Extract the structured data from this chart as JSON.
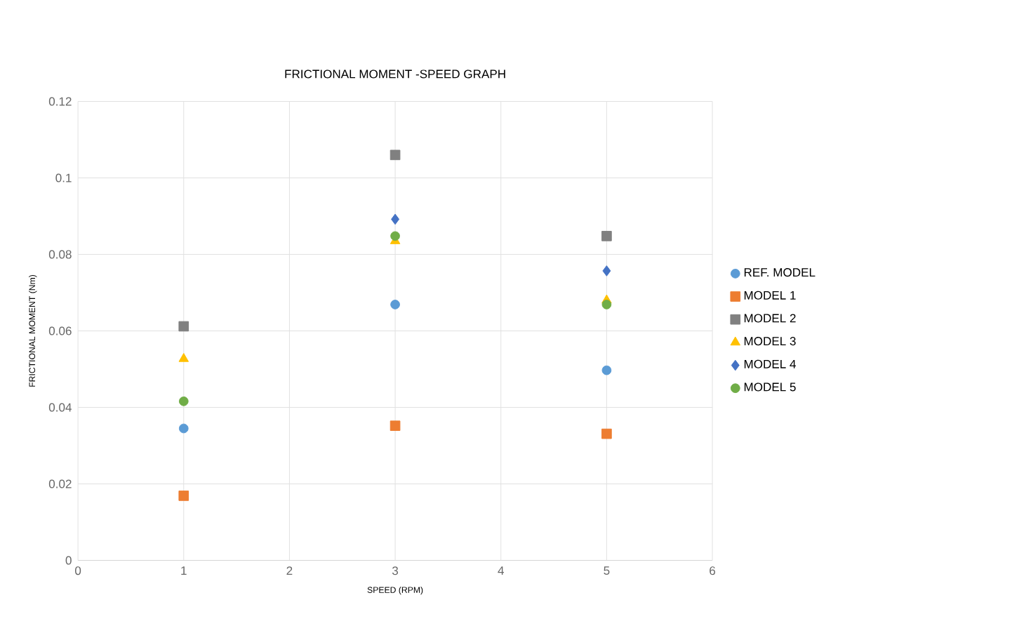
{
  "chart_data": {
    "type": "scatter",
    "title": "FRICTIONAL MOMENT -SPEED GRAPH",
    "xlabel": "SPEED (RPM)",
    "ylabel": "FRICTIONAL MOMENT (Nm)",
    "xlim": [
      0,
      6
    ],
    "xticks": [
      0,
      1,
      2,
      3,
      4,
      5,
      6
    ],
    "ylim": [
      0,
      0.12
    ],
    "yticks": [
      0,
      0.02,
      0.04,
      0.06,
      0.08,
      0.1,
      0.12
    ],
    "grid": true,
    "legend": "right",
    "x": [
      1,
      3,
      5
    ],
    "series": [
      {
        "name": "REF. MODEL",
        "color": "#5b9bd5",
        "marker": "circle",
        "values": [
          0.0345,
          0.0669,
          0.0497
        ]
      },
      {
        "name": "MODEL 1",
        "color": "#ed7d31",
        "marker": "square",
        "values": [
          0.0169,
          0.0352,
          0.0331
        ]
      },
      {
        "name": "MODEL 2",
        "color": "#808080",
        "marker": "square",
        "values": [
          0.0612,
          0.106,
          0.0848
        ]
      },
      {
        "name": "MODEL 3",
        "color": "#ffc000",
        "marker": "triangle",
        "values": [
          0.0527,
          0.0835,
          0.068
        ]
      },
      {
        "name": "MODEL 4",
        "color": "#4472c4",
        "marker": "diamond",
        "values": [
          null,
          0.0892,
          0.0757
        ]
      },
      {
        "name": "MODEL 5",
        "color": "#70ad47",
        "marker": "circle",
        "values": [
          0.0416,
          0.0848,
          0.0669
        ]
      }
    ]
  }
}
